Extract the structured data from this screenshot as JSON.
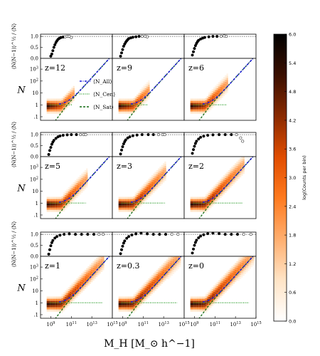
{
  "figure": {
    "xlabel": "M_H [M_⊙ h^−1]",
    "ylabel_main": "N",
    "ylabel_ratio": "⟨N(N−1)⟩^½ / ⟨N⟩",
    "colorbar_label": "log(Counts per bin)",
    "colorbar_ticks": [
      "0.0",
      "0.6",
      "1.2",
      "1.8",
      "2.4",
      "3.0",
      "3.6",
      "4.2",
      "4.8",
      "5.4",
      "6.0"
    ],
    "legend": {
      "all": "⟨N_All⟩",
      "cen": "⟨N_Cen⟩",
      "sat": "⟨N_Sat⟩"
    },
    "colors": {
      "all": "#1c1cd8",
      "cen": "#2e9e2e",
      "sat": "#146b14",
      "colormap": [
        "#ffffff",
        "#ffe4c6",
        "#ffae6e",
        "#ff7a1e",
        "#e14d00",
        "#8a2a00",
        "#3a0f00",
        "#000000"
      ]
    }
  },
  "chart_data": {
    "type": "heatmap",
    "grid": "3x3 panel groups, each with a ratio subplot above a counts subplot",
    "x_axis": {
      "scale": "log",
      "range": [
        100000000,
        1000000000000000
      ],
      "tick_labels": [
        "10^9",
        "10^11",
        "10^13",
        "10^15"
      ]
    },
    "ratio_axis": {
      "range": [
        0,
        1.1
      ],
      "tick_labels": [
        "0.0",
        "0.5",
        "1.0"
      ],
      "reference_line": 1.0
    },
    "count_axis": {
      "scale": "log",
      "range": [
        0.05,
        8000
      ],
      "tick_labels": [
        ".1",
        "1",
        "10",
        "10^2",
        "10^3"
      ]
    },
    "colorbar": {
      "range": [
        0.0,
        6.0
      ]
    },
    "redshifts": [
      "z=12",
      "z=9",
      "z=6",
      "z=5",
      "z=3",
      "z=2",
      "z=1",
      "z=0.3",
      "z=0"
    ],
    "panels": [
      {
        "label": "z=12",
        "mass_max_log": 11.2,
        "ratio_points": [
          [
            9.0,
            0.1
          ],
          [
            9.1,
            0.2
          ],
          [
            9.2,
            0.35
          ],
          [
            9.3,
            0.5
          ],
          [
            9.4,
            0.62
          ],
          [
            9.5,
            0.72
          ],
          [
            9.6,
            0.8
          ],
          [
            9.7,
            0.86
          ],
          [
            9.8,
            0.9
          ],
          [
            9.9,
            0.93
          ],
          [
            10.0,
            0.95
          ],
          [
            10.2,
            0.97
          ],
          [
            10.4,
            0.98
          ],
          [
            10.6,
            1.0
          ],
          [
            10.8,
            1.0
          ],
          [
            11.0,
            0.95
          ]
        ]
      },
      {
        "label": "z=9",
        "mass_max_log": 11.6,
        "ratio_points": [
          [
            8.8,
            0.1
          ],
          [
            8.9,
            0.25
          ],
          [
            9.0,
            0.4
          ],
          [
            9.1,
            0.55
          ],
          [
            9.2,
            0.65
          ],
          [
            9.3,
            0.73
          ],
          [
            9.4,
            0.8
          ],
          [
            9.5,
            0.85
          ],
          [
            9.6,
            0.9
          ],
          [
            9.8,
            0.93
          ],
          [
            10.0,
            0.96
          ],
          [
            10.3,
            0.98
          ],
          [
            10.6,
            1.0
          ],
          [
            10.9,
            1.0
          ],
          [
            11.2,
            1.0
          ],
          [
            11.4,
            0.98
          ]
        ]
      },
      {
        "label": "z=6",
        "mass_max_log": 12.2,
        "ratio_points": [
          [
            8.8,
            0.15
          ],
          [
            8.9,
            0.3
          ],
          [
            9.0,
            0.45
          ],
          [
            9.1,
            0.58
          ],
          [
            9.2,
            0.68
          ],
          [
            9.3,
            0.76
          ],
          [
            9.4,
            0.82
          ],
          [
            9.6,
            0.88
          ],
          [
            9.8,
            0.92
          ],
          [
            10.0,
            0.95
          ],
          [
            10.4,
            0.98
          ],
          [
            10.8,
            1.0
          ],
          [
            11.2,
            1.0
          ],
          [
            11.6,
            1.0
          ],
          [
            11.9,
            1.02
          ],
          [
            12.1,
            1.0
          ]
        ]
      },
      {
        "label": "z=5",
        "mass_max_log": 12.5,
        "ratio_points": [
          [
            8.8,
            0.1
          ],
          [
            8.9,
            0.28
          ],
          [
            9.0,
            0.42
          ],
          [
            9.1,
            0.56
          ],
          [
            9.2,
            0.66
          ],
          [
            9.3,
            0.74
          ],
          [
            9.5,
            0.83
          ],
          [
            9.7,
            0.9
          ],
          [
            9.9,
            0.94
          ],
          [
            10.2,
            0.97
          ],
          [
            10.6,
            0.99
          ],
          [
            11.0,
            1.0
          ],
          [
            11.5,
            1.0
          ],
          [
            11.9,
            1.0
          ],
          [
            12.2,
            1.0
          ],
          [
            12.4,
            1.0
          ]
        ]
      },
      {
        "label": "z=3",
        "mass_max_log": 13.2,
        "ratio_points": [
          [
            8.8,
            0.12
          ],
          [
            8.9,
            0.3
          ],
          [
            9.0,
            0.45
          ],
          [
            9.1,
            0.58
          ],
          [
            9.2,
            0.68
          ],
          [
            9.3,
            0.76
          ],
          [
            9.5,
            0.85
          ],
          [
            9.7,
            0.9
          ],
          [
            10.0,
            0.95
          ],
          [
            10.4,
            0.98
          ],
          [
            10.9,
            1.0
          ],
          [
            11.5,
            1.0
          ],
          [
            12.0,
            1.0
          ],
          [
            12.5,
            1.0
          ],
          [
            12.9,
            1.0
          ],
          [
            13.1,
            1.0
          ]
        ]
      },
      {
        "label": "z=2",
        "mass_max_log": 13.8,
        "ratio_points": [
          [
            8.8,
            0.15
          ],
          [
            8.9,
            0.32
          ],
          [
            9.0,
            0.47
          ],
          [
            9.1,
            0.6
          ],
          [
            9.2,
            0.7
          ],
          [
            9.4,
            0.8
          ],
          [
            9.6,
            0.88
          ],
          [
            9.9,
            0.93
          ],
          [
            10.3,
            0.97
          ],
          [
            10.8,
            0.99
          ],
          [
            11.4,
            1.0
          ],
          [
            12.0,
            1.0
          ],
          [
            12.6,
            1.0
          ],
          [
            13.1,
            1.0
          ],
          [
            13.5,
            0.85
          ],
          [
            13.7,
            0.7
          ]
        ]
      },
      {
        "label": "z=1",
        "mass_max_log": 14.2,
        "ratio_points": [
          [
            8.8,
            0.1
          ],
          [
            8.9,
            0.3
          ],
          [
            9.0,
            0.48
          ],
          [
            9.1,
            0.62
          ],
          [
            9.2,
            0.72
          ],
          [
            9.4,
            0.83
          ],
          [
            9.6,
            0.9
          ],
          [
            9.9,
            0.96
          ],
          [
            10.3,
            1.0
          ],
          [
            10.8,
            1.02
          ],
          [
            11.4,
            1.0
          ],
          [
            12.0,
            1.0
          ],
          [
            12.6,
            1.0
          ],
          [
            13.2,
            1.0
          ],
          [
            13.7,
            1.0
          ],
          [
            14.1,
            1.0
          ]
        ]
      },
      {
        "label": "z=0.3",
        "mass_max_log": 14.6,
        "ratio_points": [
          [
            8.8,
            0.12
          ],
          [
            8.9,
            0.3
          ],
          [
            9.0,
            0.46
          ],
          [
            9.1,
            0.6
          ],
          [
            9.2,
            0.7
          ],
          [
            9.4,
            0.82
          ],
          [
            9.6,
            0.9
          ],
          [
            9.9,
            0.97
          ],
          [
            10.3,
            1.02
          ],
          [
            10.8,
            1.05
          ],
          [
            11.4,
            1.02
          ],
          [
            12.0,
            1.0
          ],
          [
            12.6,
            1.0
          ],
          [
            13.2,
            1.0
          ],
          [
            13.8,
            1.0
          ],
          [
            14.4,
            1.0
          ]
        ]
      },
      {
        "label": "z=0",
        "mass_max_log": 14.7,
        "ratio_points": [
          [
            8.8,
            0.15
          ],
          [
            8.9,
            0.33
          ],
          [
            9.0,
            0.5
          ],
          [
            9.1,
            0.63
          ],
          [
            9.2,
            0.73
          ],
          [
            9.4,
            0.84
          ],
          [
            9.6,
            0.92
          ],
          [
            9.9,
            0.98
          ],
          [
            10.3,
            1.03
          ],
          [
            10.8,
            1.05
          ],
          [
            11.4,
            1.03
          ],
          [
            12.0,
            1.0
          ],
          [
            12.6,
            1.0
          ],
          [
            13.2,
            1.0
          ],
          [
            13.8,
            1.0
          ],
          [
            14.5,
            1.0
          ]
        ]
      }
    ],
    "curves": {
      "N_All": "power law rising from ~1 at M≈10^10.5 to ~10^3 at the top of each panel (dash-dot blue)",
      "N_Cen": "constant at N=1 (dotted green)",
      "N_Sat": "rises steeply from ~0.1 near M≈10^9 and joins N_All (dashed dark green)"
    }
  }
}
